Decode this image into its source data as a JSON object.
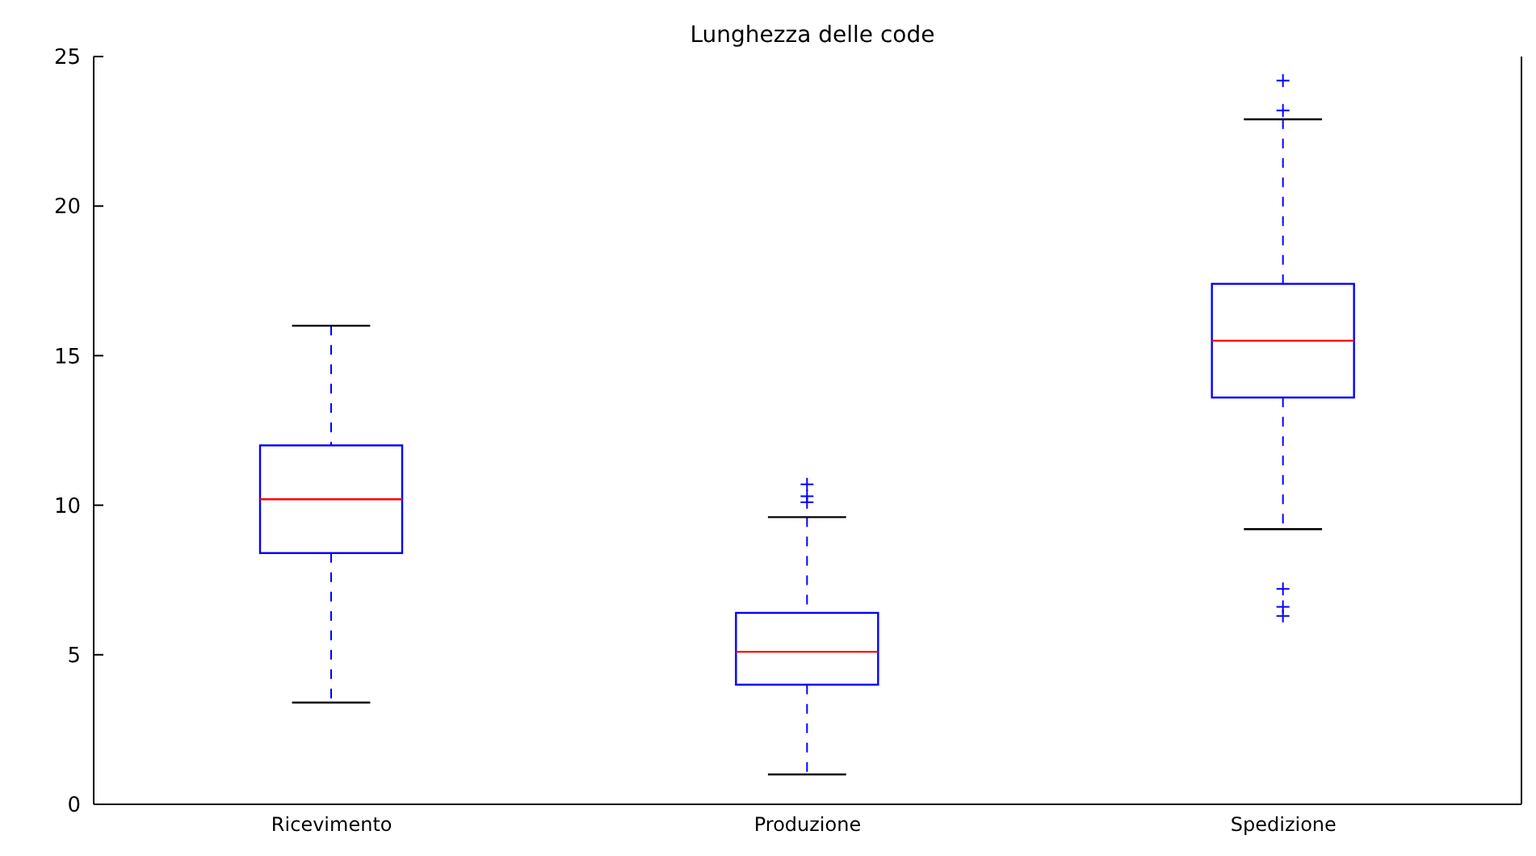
{
  "chart_data": {
    "type": "box",
    "title": "Lunghezza delle code",
    "categories": [
      "Ricevimento",
      "Produzione",
      "Spedizione"
    ],
    "color": "#0000ff",
    "boxes": [
      {
        "low": 3.4,
        "q1": 8.4,
        "median": 10.2,
        "q3": 12.0,
        "high": 16.0
      },
      {
        "low": 1.0,
        "q1": 4.0,
        "median": 5.1,
        "q3": 6.4,
        "high": 9.6,
        "outliers": [
          10.7,
          10.3,
          10.1
        ]
      },
      {
        "low": 9.2,
        "q1": 13.6,
        "median": 15.5,
        "q3": 17.4,
        "high": 22.9,
        "outliers": [
          24.2,
          23.2,
          7.2,
          6.6,
          6.3
        ]
      }
    ],
    "ylim": [
      0,
      25
    ],
    "yticks": [
      0,
      5,
      10,
      15,
      20,
      25
    ]
  }
}
